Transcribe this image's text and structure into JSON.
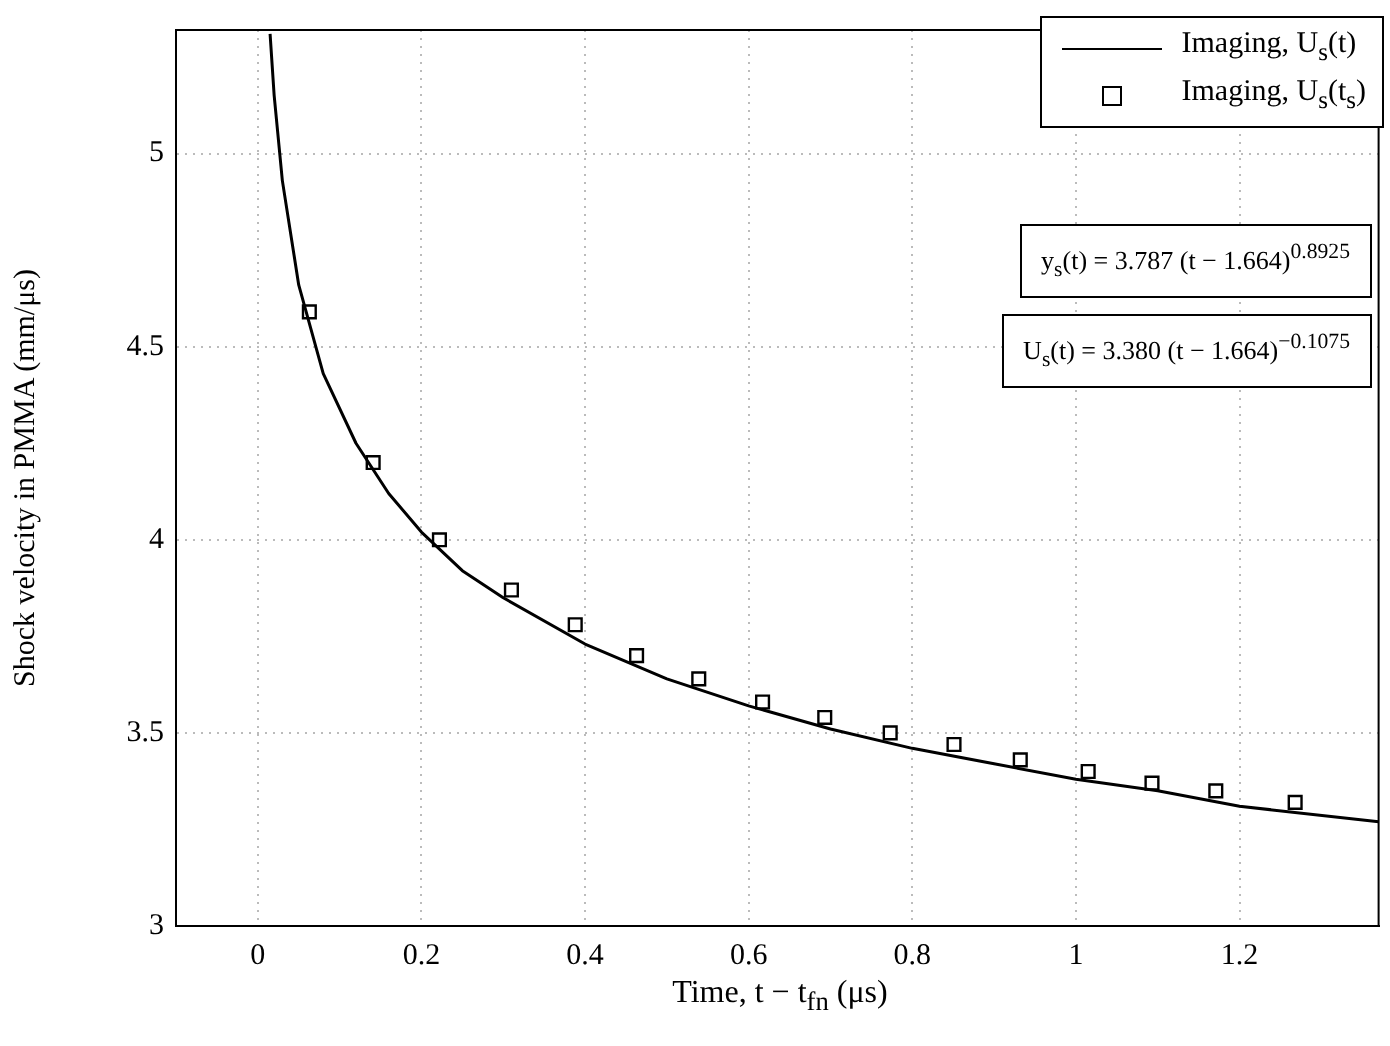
{
  "chart_data": {
    "type": "line",
    "xlabel": "Time, t − t$_{fn}$ (μs)",
    "ylabel": "Shock velocity in PMMA (mm/μs)",
    "xlim": [
      -0.1,
      1.37
    ],
    "xticks": [
      0,
      0.2,
      0.4,
      0.6,
      0.8,
      1,
      1.2
    ],
    "ylim": [
      3,
      5.32
    ],
    "yticks": [
      3,
      3.5,
      4,
      4.5,
      5
    ],
    "grid": true,
    "legend": "top right",
    "series": [
      {
        "name": "Imaging, U$_{s}$(t)",
        "type": "line",
        "color": "#000000",
        "line_style": "solid",
        "marker": "none",
        "x": [
          0.015,
          0.02,
          0.03,
          0.05,
          0.08,
          0.12,
          0.16,
          0.2,
          0.25,
          0.3,
          0.4,
          0.5,
          0.6,
          0.7,
          0.8,
          0.9,
          1.0,
          1.1,
          1.2,
          1.37
        ],
        "values": [
          5.31,
          5.15,
          4.93,
          4.66,
          4.43,
          4.25,
          4.12,
          4.02,
          3.92,
          3.85,
          3.73,
          3.64,
          3.57,
          3.51,
          3.46,
          3.42,
          3.38,
          3.35,
          3.31,
          3.27
        ]
      },
      {
        "name": "Imaging, U$_{s}$(t$_{s}$)",
        "type": "scatter",
        "color": "#000000",
        "marker": "square",
        "x": [
          0.063,
          0.141,
          0.222,
          0.31,
          0.388,
          0.463,
          0.539,
          0.617,
          0.693,
          0.773,
          0.851,
          0.932,
          1.015,
          1.093,
          1.171,
          1.268
        ],
        "values": [
          4.59,
          4.2,
          4.0,
          3.87,
          3.78,
          3.7,
          3.64,
          3.58,
          3.54,
          3.5,
          3.47,
          3.43,
          3.4,
          3.37,
          3.35,
          3.32
        ]
      }
    ],
    "annotations": [
      "y$_{s}$(t) = 3.787 (t − 1.664)$^{0.8925}$",
      "U$_{s}$(t) = 3.380 (t − 1.664)$^{−0.1075}$"
    ]
  }
}
